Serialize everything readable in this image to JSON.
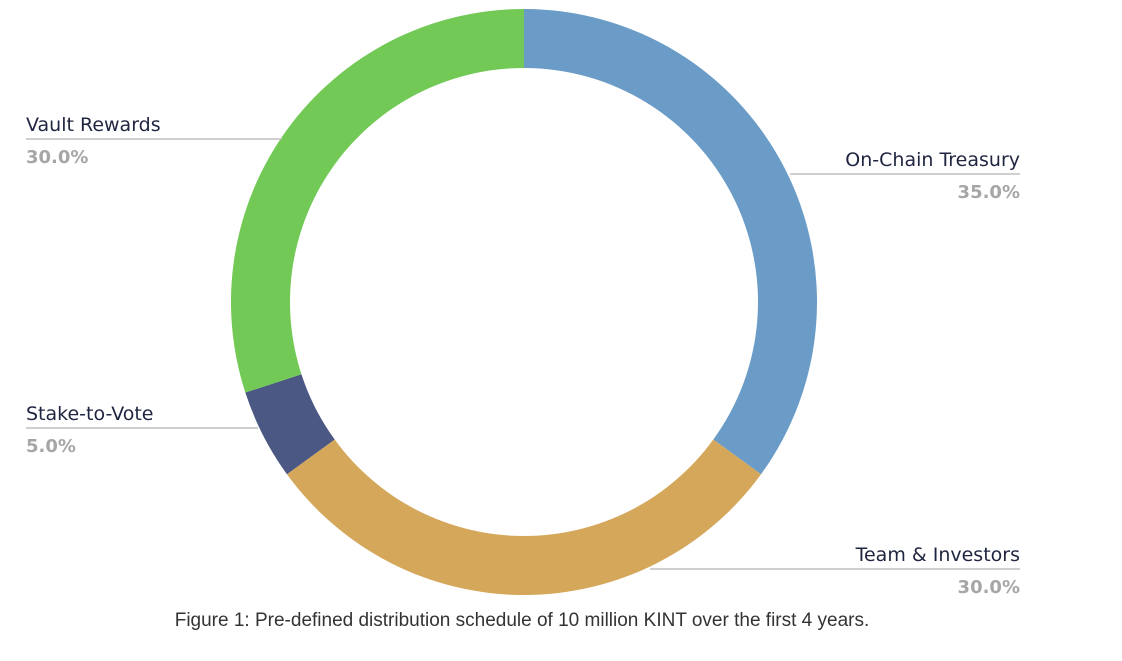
{
  "chart_data": {
    "type": "pie",
    "donut": true,
    "start_angle_deg": 0,
    "direction": "clockwise",
    "slices": [
      {
        "label": "On-Chain Treasury",
        "value": 35.0,
        "value_label": "35.0%",
        "color": "#6a9cc7",
        "side": "right"
      },
      {
        "label": "Team & Investors",
        "value": 30.0,
        "value_label": "30.0%",
        "color": "#d4a75a",
        "side": "right"
      },
      {
        "label": "Stake-to-Vote",
        "value": 5.0,
        "value_label": "5.0%",
        "color": "#4b5883",
        "side": "left"
      },
      {
        "label": "Vault Rewards",
        "value": 30.0,
        "value_label": "30.0%",
        "color": "#72c955",
        "side": "left"
      }
    ],
    "caption": "Figure 1: Pre-defined distribution schedule of 10 million KINT over the first 4 years."
  }
}
